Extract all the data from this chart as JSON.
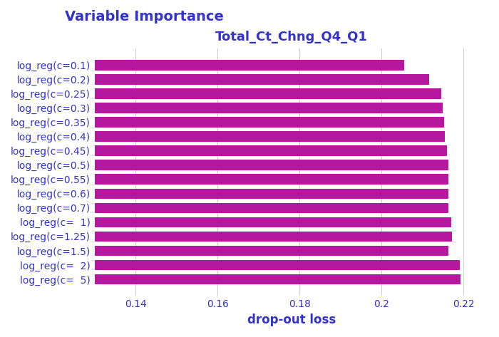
{
  "title": "Variable Importance",
  "subtitle": "Total_Ct_Chng_Q4_Q1",
  "xlabel": "drop-out loss",
  "categories": [
    "log_reg(c=0.1)",
    "log_reg(c=0.2)",
    "log_reg(c=0.25)",
    "log_reg(c=0.3)",
    "log_reg(c=0.35)",
    "log_reg(c=0.4)",
    "log_reg(c=0.45)",
    "log_reg(c=0.5)",
    "log_reg(c=0.55)",
    "log_reg(c=0.6)",
    "log_reg(c=0.7)",
    "log_reg(c=  1)",
    "log_reg(c=1.25)",
    "log_reg(c=1.5)",
    "log_reg(c=  2)",
    "log_reg(c=  5)"
  ],
  "values": [
    0.2055,
    0.2115,
    0.2145,
    0.2148,
    0.2152,
    0.2154,
    0.216,
    0.2162,
    0.2162,
    0.2163,
    0.2163,
    0.217,
    0.2172,
    0.2163,
    0.219,
    0.2192
  ],
  "bar_color": "#b5179e",
  "title_color": "#3333cc",
  "subtitle_color": "#3333cc",
  "xlabel_color": "#3333cc",
  "tick_color": "#3333cc",
  "background_color": "#ffffff",
  "grid_color": "#d0d0d0",
  "xlim_left": 0.13,
  "xlim_right": 0.226,
  "xticks": [
    0.14,
    0.16,
    0.18,
    0.2,
    0.22
  ],
  "title_fontsize": 14,
  "subtitle_fontsize": 13,
  "xlabel_fontsize": 12,
  "tick_fontsize": 10,
  "bar_height": 0.72
}
